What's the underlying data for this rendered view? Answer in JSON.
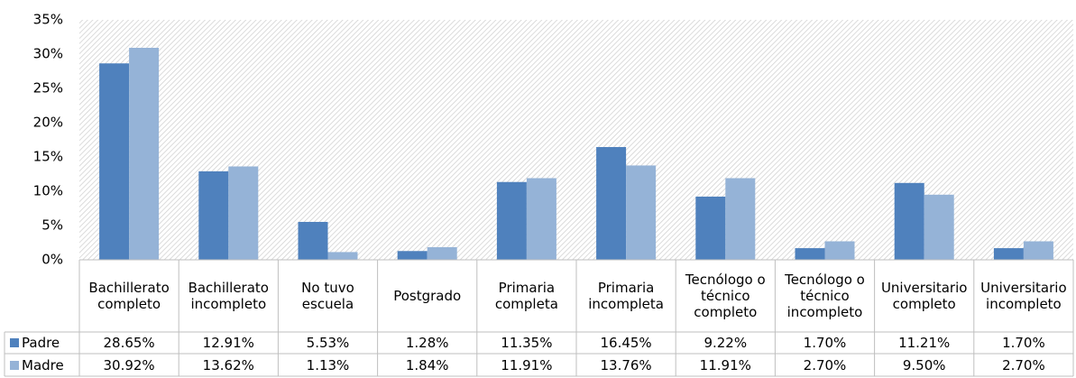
{
  "chart_data": {
    "type": "bar",
    "categories": [
      "Bachillerato completo",
      "Bachillerato incompleto",
      "No tuvo escuela",
      "Postgrado",
      "Primaria completa",
      "Primaria incompleta",
      "Tecnólogo o técnico completo",
      "Tecnólogo o técnico incompleto",
      "Universitario completo",
      "Universitario incompleto"
    ],
    "series": [
      {
        "name": "Padre",
        "color": "#4f81bd",
        "values": [
          28.65,
          12.91,
          5.53,
          1.28,
          11.35,
          16.45,
          9.22,
          1.7,
          11.21,
          1.7
        ],
        "value_labels": [
          "28.65%",
          "12.91%",
          "5.53%",
          "1.28%",
          "11.35%",
          "16.45%",
          "9.22%",
          "1.70%",
          "11.21%",
          "1.70%"
        ]
      },
      {
        "name": "Madre",
        "color": "#95b3d7",
        "values": [
          30.92,
          13.62,
          1.13,
          1.84,
          11.91,
          13.76,
          11.91,
          2.7,
          9.5,
          2.7
        ],
        "value_labels": [
          "30.92%",
          "13.62%",
          "1.13%",
          "1.84%",
          "11.91%",
          "13.76%",
          "11.91%",
          "2.70%",
          "9.50%",
          "2.70%"
        ]
      }
    ],
    "ylim": [
      0,
      35
    ],
    "yticks": [
      {
        "value": 0,
        "label": "0%"
      },
      {
        "value": 5,
        "label": "5%"
      },
      {
        "value": 10,
        "label": "10%"
      },
      {
        "value": 15,
        "label": "15%"
      },
      {
        "value": 20,
        "label": "20%"
      },
      {
        "value": 25,
        "label": "25%"
      },
      {
        "value": 30,
        "label": "30%"
      },
      {
        "value": 35,
        "label": "35%"
      }
    ]
  }
}
